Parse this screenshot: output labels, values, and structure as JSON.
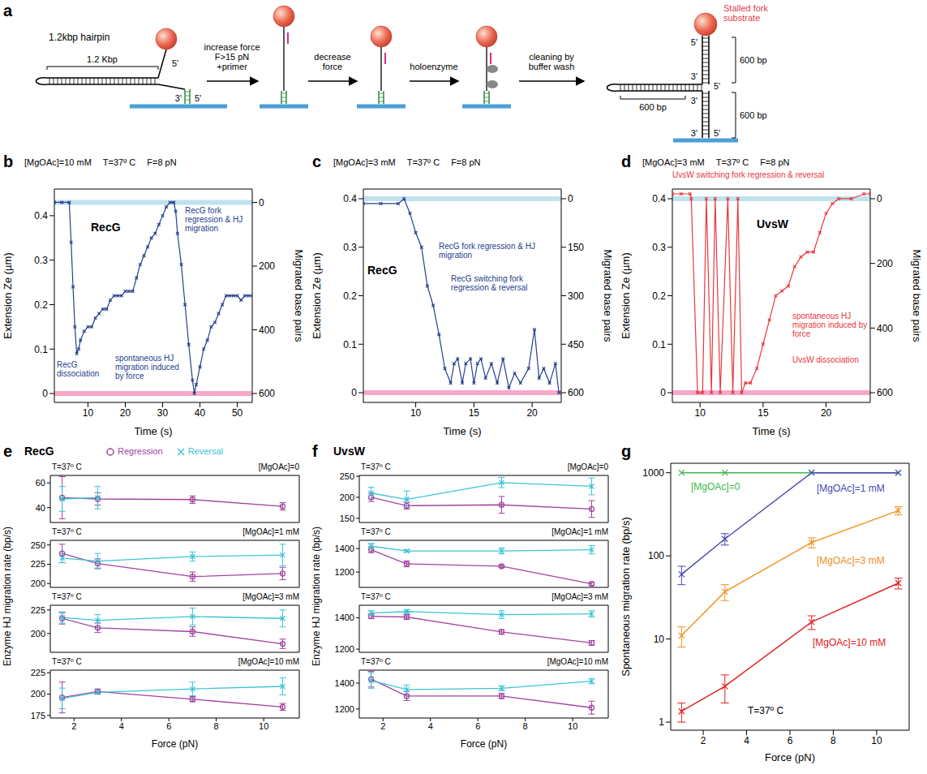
{
  "diagram": {
    "panel": "a",
    "hairpin_label": "1.2kbp hairpin",
    "hairpin_length": "1.2 Kbp",
    "hairpin_ends": [
      "5'",
      "3'",
      "5'"
    ],
    "steps": [
      "increase force F>15 pN +primer",
      "decrease force",
      "holoenzyme",
      "cleaning by buffer wash"
    ],
    "result_label": "Stalled fork substrate",
    "result_ends": [
      "5'",
      "3'",
      "5'",
      "3'",
      "3'",
      "5'"
    ],
    "result_lengths": [
      "600 bp",
      "600 bp",
      "600 bp"
    ]
  },
  "chart_data": [
    {
      "panel": "b",
      "type": "line",
      "title": "RecG",
      "conditions": [
        "[MgOAc]=10 mM",
        "T=37º C",
        "F=8 pN"
      ],
      "annotations": [
        "RecG fork regression & HJ migration",
        "spontaneous HJ migration induced by force",
        "RecG dissociation"
      ],
      "xlabel": "Time (s)",
      "ylabel": "Extension Ze (µm)",
      "y2label": "Migrated base pairs",
      "xlim": [
        1,
        54
      ],
      "xticks": [
        10,
        20,
        30,
        40,
        50
      ],
      "ylim": [
        -0.02,
        0.46
      ],
      "yticks": [
        0,
        0.1,
        0.2,
        0.3,
        0.4
      ],
      "y2lim": [
        628,
        -42
      ],
      "y2ticks": [
        0,
        200,
        400,
        600
      ],
      "bands": [
        {
          "y": 0.43,
          "color": "#bfe3ee"
        },
        {
          "y": 0,
          "color": "#f7a8c8"
        }
      ],
      "x": [
        1,
        3,
        5,
        5.5,
        6,
        6.5,
        7,
        7.5,
        8,
        9,
        10,
        11,
        12,
        13,
        14,
        15,
        16,
        17,
        18,
        19,
        20,
        21,
        22,
        23,
        24,
        25,
        26,
        27,
        28,
        29,
        30,
        31,
        32,
        33,
        33.5,
        34,
        35,
        36,
        37,
        38,
        38.5,
        39,
        40,
        41,
        42,
        43,
        44,
        45,
        46,
        47,
        48,
        49,
        50,
        51,
        52,
        53,
        54
      ],
      "series": [
        {
          "color": "#27408b",
          "marker": "x",
          "values": [
            0.43,
            0.43,
            0.43,
            0.34,
            0.24,
            0.15,
            0.09,
            0.1,
            0.12,
            0.14,
            0.15,
            0.15,
            0.17,
            0.18,
            0.19,
            0.19,
            0.21,
            0.22,
            0.22,
            0.22,
            0.23,
            0.23,
            0.23,
            0.26,
            0.29,
            0.31,
            0.33,
            0.35,
            0.36,
            0.38,
            0.4,
            0.42,
            0.43,
            0.43,
            0.41,
            0.36,
            0.29,
            0.2,
            0.11,
            0.03,
            0.0,
            0.02,
            0.06,
            0.1,
            0.12,
            0.15,
            0.16,
            0.18,
            0.2,
            0.22,
            0.22,
            0.22,
            0.22,
            0.21,
            0.22,
            0.22,
            0.22
          ]
        }
      ]
    },
    {
      "panel": "c",
      "type": "line",
      "title": "RecG",
      "conditions": [
        "[MgOAc]=3 mM",
        "T=37º C",
        "F=8 pN"
      ],
      "annotations": [
        "RecG fork regression & HJ migration",
        "RecG switching fork regression & reversal"
      ],
      "xlabel": "Time (s)",
      "ylabel": "Extension Ze (µm)",
      "y2label": "Migrated base pairs",
      "xlim": [
        5.5,
        22.5
      ],
      "xticks": [
        10,
        15,
        20
      ],
      "ylim": [
        -0.02,
        0.42
      ],
      "yticks": [
        0,
        0.1,
        0.2,
        0.3,
        0.4
      ],
      "y2lim": [
        630,
        -30
      ],
      "y2ticks": [
        0,
        150,
        300,
        450,
        600
      ],
      "bands": [
        {
          "y": 0.4,
          "color": "#bfe3ee"
        },
        {
          "y": 0,
          "color": "#f7a8c8"
        }
      ],
      "x": [
        5.5,
        7,
        8.5,
        9,
        9.5,
        10,
        10.5,
        11,
        11.5,
        12,
        12.5,
        13,
        13.3,
        13.6,
        14,
        14.3,
        14.7,
        15,
        15.3,
        15.6,
        16,
        16.5,
        17,
        17.5,
        18,
        18.5,
        19,
        19.7,
        20.2,
        20.6,
        21,
        21.5,
        22,
        22.3
      ],
      "series": [
        {
          "color": "#27408b",
          "marker": "x",
          "values": [
            0.39,
            0.39,
            0.39,
            0.4,
            0.37,
            0.33,
            0.3,
            0.22,
            0.18,
            0.12,
            0.05,
            0.02,
            0.06,
            0.07,
            0.02,
            0.06,
            0.07,
            0.02,
            0.06,
            0.07,
            0.03,
            0.06,
            0.02,
            0.07,
            0.01,
            0.04,
            0.02,
            0.05,
            0.13,
            0.03,
            0.05,
            0.02,
            0.06,
            0.0
          ]
        }
      ]
    },
    {
      "panel": "d",
      "type": "line",
      "title": "UvsW",
      "conditions": [
        "[MgOAc]=3 mM",
        "T=37º C",
        "F=8 pN"
      ],
      "annotations": [
        "UvsW switching fork regression & reversal",
        "spontaneous HJ migration induced by force",
        "UvsW dissociation"
      ],
      "xlabel": "Time (s)",
      "ylabel": "Extension Ze (µm)",
      "y2label": "Migrated base pairs",
      "xlim": [
        7.8,
        23.5
      ],
      "xticks": [
        10,
        15,
        20
      ],
      "ylim": [
        -0.02,
        0.42
      ],
      "yticks": [
        0,
        0.1,
        0.2,
        0.3,
        0.4
      ],
      "y2lim": [
        630,
        -30
      ],
      "y2ticks": [
        0,
        200,
        400,
        600
      ],
      "bands": [
        {
          "y": 0.4,
          "color": "#bfe3ee"
        },
        {
          "y": 0,
          "color": "#f7a8c8"
        }
      ],
      "x": [
        7.8,
        8.5,
        9.2,
        9.3,
        9.8,
        10.2,
        10.5,
        10.9,
        11.2,
        11.6,
        12.2,
        12.6,
        13,
        13.3,
        13.6,
        14,
        14.5,
        15,
        15.5,
        16,
        16.5,
        17,
        17.5,
        18,
        18.5,
        19,
        19.5,
        20,
        20.5,
        21,
        22,
        23,
        23.5
      ],
      "series": [
        {
          "color": "#e8383d",
          "marker": "x",
          "values": [
            0.41,
            0.41,
            0.41,
            0.4,
            0.0,
            0.0,
            0.4,
            0.0,
            0.4,
            0.0,
            0.4,
            0.0,
            0.4,
            0.0,
            0.02,
            0.02,
            0.05,
            0.1,
            0.15,
            0.2,
            0.21,
            0.22,
            0.26,
            0.28,
            0.29,
            0.29,
            0.33,
            0.37,
            0.39,
            0.4,
            0.4,
            0.41,
            0.41
          ]
        }
      ]
    },
    {
      "panel": "e",
      "type": "line",
      "title": "RecG",
      "legend": "top",
      "ylabel": "Enzyme HJ migration rate (bp/s)",
      "xlabel": "Force (pN)",
      "series": [
        {
          "name": "Regression",
          "color": "#a2449e",
          "marker": "circle"
        },
        {
          "name": "Reversal",
          "color": "#3cc4d4",
          "marker": "x"
        }
      ],
      "subplots": [
        {
          "annotations": [
            "T=37º C",
            "[MgOAc]=0"
          ],
          "tick_labels": "y",
          "x": [
            1.5,
            3,
            7,
            10.8
          ],
          "xlim": [
            1,
            11.5
          ],
          "xticks": [
            2,
            4,
            6,
            8,
            10
          ],
          "ylim": [
            28,
            66
          ],
          "yticks": [
            40,
            60
          ],
          "series": [
            {
              "values": [
                48,
                47,
                46.5,
                41
              ],
              "errors": [
                17,
                5,
                3,
                3
              ]
            },
            {
              "values": [
                47,
                48,
                null,
                null
              ],
              "errors": [
                10,
                9,
                null,
                null
              ]
            }
          ]
        },
        {
          "annotations": [
            "T=37º C",
            "[MgOAc]=1 mM"
          ],
          "tick_labels": "y",
          "x": [
            1.5,
            3,
            7,
            10.8
          ],
          "xlim": [
            1,
            11.5
          ],
          "xticks": [
            2,
            4,
            6,
            8,
            10
          ],
          "ylim": [
            195,
            256
          ],
          "yticks": [
            200,
            225,
            250
          ],
          "series": [
            {
              "values": [
                239,
                226,
                209,
                213
              ],
              "errors": [
                12,
                6,
                6,
                8
              ]
            },
            {
              "values": [
                233,
                229,
                235,
                237
              ],
              "errors": [
                6,
                10,
                6,
                14
              ]
            }
          ]
        },
        {
          "annotations": [
            "T=37º C",
            "[MgOAc]=3 mM"
          ],
          "tick_labels": "y",
          "x": [
            1.5,
            3,
            7,
            10.8
          ],
          "xlim": [
            1,
            11.5
          ],
          "xticks": [
            2,
            4,
            6,
            8,
            10
          ],
          "ylim": [
            180,
            230
          ],
          "yticks": [
            200,
            225
          ],
          "series": [
            {
              "values": [
                216,
                206,
                202,
                189
              ],
              "errors": [
                6,
                5,
                5,
                5
              ]
            },
            {
              "values": [
                217,
                214,
                218,
                216
              ],
              "errors": [
                6,
                6,
                9,
                9
              ]
            }
          ]
        },
        {
          "annotations": [
            "T=37º C",
            "[MgOAc]=10 mM"
          ],
          "x": [
            1.5,
            3,
            7,
            10.8
          ],
          "xlim": [
            1,
            11.5
          ],
          "xticks": [
            2,
            4,
            6,
            8,
            10
          ],
          "ylim": [
            172,
            228
          ],
          "yticks": [
            175,
            200,
            225
          ],
          "series": [
            {
              "values": [
                196,
                203,
                194,
                185
              ],
              "errors": [
                18,
                3,
                3,
                4
              ]
            },
            {
              "values": [
                195,
                202,
                206,
                209
              ],
              "errors": [
                12,
                2,
                8,
                10
              ]
            }
          ]
        }
      ]
    },
    {
      "panel": "f",
      "type": "line",
      "title": "UvsW",
      "ylabel": "Enzyme HJ migration rate (bp/s)",
      "xlabel": "Force (pN)",
      "series": [
        {
          "color": "#a2449e",
          "marker": "circle"
        },
        {
          "color": "#3cc4d4",
          "marker": "x"
        }
      ],
      "subplots": [
        {
          "annotations": [
            "T=37º C",
            "[MgOAc]=0"
          ],
          "tick_labels": "y",
          "x": [
            1.5,
            3,
            7,
            10.8
          ],
          "xlim": [
            1,
            11.5
          ],
          "xticks": [
            2,
            4,
            6,
            8,
            10
          ],
          "ylim": [
            140,
            252
          ],
          "yticks": [
            150,
            200,
            250
          ],
          "series": [
            {
              "values": [
                200,
                180,
                182,
                172
              ],
              "errors": [
                10,
                8,
                20,
                20
              ]
            },
            {
              "values": [
                210,
                195,
                235,
                226
              ],
              "errors": [
                14,
                20,
                12,
                20
              ]
            }
          ]
        },
        {
          "annotations": [
            "T=37º C",
            "[MgOAc]=1 mM"
          ],
          "tick_labels": "y",
          "x": [
            1.5,
            3,
            7,
            10.8
          ],
          "xlim": [
            1,
            11.5
          ],
          "xticks": [
            2,
            4,
            6,
            8,
            10
          ],
          "ylim": [
            1070,
            1470
          ],
          "yticks": [
            1200,
            1400
          ],
          "series": [
            {
              "values": [
                1390,
                1270,
                1250,
                1100
              ],
              "errors": [
                25,
                25,
                12,
                12
              ]
            },
            {
              "values": [
                1420,
                1380,
                1380,
                1390
              ],
              "errors": [
                25,
                10,
                25,
                35
              ]
            }
          ]
        },
        {
          "annotations": [
            "T=37º C",
            "[MgOAc]=3 mM"
          ],
          "tick_labels": "y",
          "x": [
            1.5,
            3,
            7,
            10.8
          ],
          "xlim": [
            1,
            11.5
          ],
          "xticks": [
            2,
            4,
            6,
            8,
            10
          ],
          "ylim": [
            1180,
            1480
          ],
          "yticks": [
            1200,
            1400
          ],
          "series": [
            {
              "values": [
                1410,
                1405,
                1310,
                1240
              ],
              "errors": [
                15,
                15,
                15,
                15
              ]
            },
            {
              "values": [
                1430,
                1440,
                1420,
                1425
              ],
              "errors": [
                15,
                12,
                25,
                20
              ]
            }
          ]
        },
        {
          "annotations": [
            "T=37º C",
            "[MgOAc]=10 mM"
          ],
          "x": [
            1.5,
            3,
            7,
            10.8
          ],
          "xlim": [
            1,
            11.5
          ],
          "xticks": [
            2,
            4,
            6,
            8,
            10
          ],
          "ylim": [
            1130,
            1500
          ],
          "yticks": [
            1200,
            1400
          ],
          "series": [
            {
              "values": [
                1430,
                1300,
                1300,
                1210
              ],
              "errors": [
                60,
                35,
                20,
                50
              ]
            },
            {
              "values": [
                1420,
                1350,
                1360,
                1415
              ],
              "errors": [
                60,
                35,
                20,
                20
              ]
            }
          ]
        }
      ]
    },
    {
      "panel": "g",
      "type": "line",
      "log": "y",
      "xlabel": "Force (pN)",
      "ylabel": "Spontaneous migration rate (bp/s)",
      "annotations": [
        "T=37º C"
      ],
      "x": [
        1,
        3,
        7,
        11
      ],
      "xlim": [
        0.5,
        11.5
      ],
      "xticks": [
        2,
        4,
        6,
        8,
        10
      ],
      "ylim": [
        0.8,
        1300
      ],
      "yticks": [
        1,
        10,
        100,
        1000
      ],
      "series": [
        {
          "name": "[MgOAc]=0",
          "color": "#3cb84a",
          "marker": "x",
          "values": [
            1000,
            1000,
            1000,
            1000
          ]
        },
        {
          "name": "[MgOAc]=1 mM",
          "color": "#4848b0",
          "marker": "x",
          "values": [
            60,
            160,
            1000,
            1000
          ],
          "errors": [
            15,
            25,
            null,
            null
          ]
        },
        {
          "name": "[MgOAc]=3 mM",
          "color": "#f0901c",
          "marker": "x",
          "values": [
            11,
            37,
            145,
            350
          ],
          "errors": [
            3,
            8,
            20,
            40
          ]
        },
        {
          "name": "[MgOAc]=10 mM",
          "color": "#e02020",
          "marker": "x",
          "values": [
            1.35,
            2.7,
            16,
            47
          ],
          "errors": [
            0.35,
            1,
            3,
            7
          ]
        }
      ]
    }
  ]
}
